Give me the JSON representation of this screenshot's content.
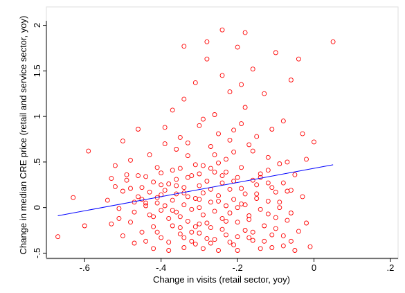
{
  "chart_data": {
    "type": "scatter",
    "title": "",
    "xlabel": "Change in visits (retail sector, yoy)",
    "ylabel": "Change in median CRE price (retail and service sector, yoy)",
    "xlim": [
      -0.7,
      0.22
    ],
    "ylim": [
      -0.55,
      2.05
    ],
    "x_ticks": [
      -0.6,
      -0.4,
      -0.2,
      0,
      0.2
    ],
    "x_tick_labels": [
      "-.6",
      "-.4",
      "-.2",
      "0",
      ".2"
    ],
    "y_ticks": [
      -0.5,
      0,
      0.5,
      1,
      1.5,
      2
    ],
    "y_tick_labels": [
      "-.5",
      "0",
      ".5",
      "1",
      "1.5",
      "2"
    ],
    "grid": false,
    "legend": "none",
    "colors": {
      "points": "#ff0000",
      "fit_line": "#0000ff",
      "plot_border": "#dddddd"
    },
    "series": [
      {
        "type": "scatter",
        "points": [
          [
            -0.67,
            -0.32
          ],
          [
            -0.63,
            0.11
          ],
          [
            -0.6,
            -0.2
          ],
          [
            -0.59,
            0.62
          ],
          [
            -0.54,
            0.08
          ],
          [
            -0.53,
            0.32
          ],
          [
            -0.52,
            0.46
          ],
          [
            -0.52,
            0.23
          ],
          [
            -0.51,
            -0.12
          ],
          [
            -0.51,
            -0.01
          ],
          [
            -0.5,
            0.73
          ],
          [
            -0.5,
            0.18
          ],
          [
            -0.49,
            0.3
          ],
          [
            -0.49,
            0.36
          ],
          [
            -0.48,
            0.21
          ],
          [
            -0.48,
            -0.16
          ],
          [
            -0.48,
            0.52
          ],
          [
            -0.47,
            0.06
          ],
          [
            -0.47,
            -0.39
          ],
          [
            -0.46,
            0.12
          ],
          [
            -0.46,
            0.86
          ],
          [
            -0.45,
            0.22
          ],
          [
            -0.45,
            0.09
          ],
          [
            -0.45,
            -0.27
          ],
          [
            -0.44,
            0.34
          ],
          [
            -0.44,
            0.02
          ],
          [
            -0.43,
            -0.08
          ],
          [
            -0.43,
            0.17
          ],
          [
            -0.42,
            -0.45
          ],
          [
            -0.42,
            0.28
          ],
          [
            -0.42,
            -0.21
          ],
          [
            -0.41,
            0.11
          ],
          [
            -0.41,
            0.05
          ],
          [
            -0.4,
            0.38
          ],
          [
            -0.4,
            -0.03
          ],
          [
            -0.4,
            -0.33
          ],
          [
            -0.39,
            0.19
          ],
          [
            -0.39,
            0.02
          ],
          [
            -0.39,
            0.7
          ],
          [
            -0.38,
            -0.12
          ],
          [
            -0.38,
            0.26
          ],
          [
            -0.38,
            -0.38
          ],
          [
            -0.37,
            1.07
          ],
          [
            -0.37,
            0.08
          ],
          [
            -0.37,
            -0.2
          ],
          [
            -0.36,
            0.31
          ],
          [
            -0.36,
            0.15
          ],
          [
            -0.36,
            -0.05
          ],
          [
            -0.35,
            0.77
          ],
          [
            -0.35,
            -0.29
          ],
          [
            -0.35,
            0.43
          ],
          [
            -0.34,
            0.03
          ],
          [
            -0.34,
            1.19
          ],
          [
            -0.34,
            -0.44
          ],
          [
            -0.34,
            0.22
          ],
          [
            -0.33,
            -0.15
          ],
          [
            -0.33,
            0.12
          ],
          [
            -0.33,
            0.57
          ],
          [
            -0.32,
            -0.02
          ],
          [
            -0.32,
            0.35
          ],
          [
            -0.32,
            -0.27
          ],
          [
            -0.31,
            1.37
          ],
          [
            -0.31,
            0.1
          ],
          [
            -0.31,
            -0.4
          ],
          [
            -0.3,
            0.24
          ],
          [
            -0.3,
            0.0
          ],
          [
            -0.3,
            0.9
          ],
          [
            -0.3,
            -0.18
          ],
          [
            -0.29,
            0.46
          ],
          [
            -0.29,
            -0.08
          ],
          [
            -0.29,
            0.16
          ],
          [
            -0.28,
            1.63
          ],
          [
            -0.28,
            -0.34
          ],
          [
            -0.28,
            0.29
          ],
          [
            -0.27,
            0.06
          ],
          [
            -0.27,
            0.67
          ],
          [
            -0.27,
            -0.22
          ],
          [
            -0.26,
            1.02
          ],
          [
            -0.26,
            0.39
          ],
          [
            -0.26,
            -0.04
          ],
          [
            -0.25,
            0.13
          ],
          [
            -0.25,
            -0.47
          ],
          [
            -0.25,
            0.81
          ],
          [
            -0.24,
            0.27
          ],
          [
            -0.24,
            -0.12
          ],
          [
            -0.24,
            1.45
          ],
          [
            -0.23,
            0.02
          ],
          [
            -0.23,
            0.53
          ],
          [
            -0.23,
            -0.3
          ],
          [
            -0.22,
            0.2
          ],
          [
            -0.22,
            1.27
          ],
          [
            -0.22,
            -0.06
          ],
          [
            -0.21,
            0.61
          ],
          [
            -0.21,
            0.09
          ],
          [
            -0.21,
            -0.41
          ],
          [
            -0.2,
            0.33
          ],
          [
            -0.2,
            1.76
          ],
          [
            -0.2,
            -0.16
          ],
          [
            -0.19,
            0.92
          ],
          [
            -0.19,
            0.04
          ],
          [
            -0.19,
            0.44
          ],
          [
            -0.18,
            -0.25
          ],
          [
            -0.18,
            1.1
          ],
          [
            -0.18,
            0.15
          ],
          [
            -0.17,
            0.69
          ],
          [
            -0.17,
            -0.09
          ],
          [
            -0.16,
            0.3
          ],
          [
            -0.16,
            1.52
          ],
          [
            -0.16,
            -0.36
          ],
          [
            -0.15,
            0.1
          ],
          [
            -0.15,
            0.78
          ],
          [
            -0.14,
            -0.02
          ],
          [
            -0.14,
            0.37
          ],
          [
            -0.13,
            1.25
          ],
          [
            -0.13,
            -0.2
          ],
          [
            -0.12,
            0.07
          ],
          [
            -0.12,
            0.55
          ],
          [
            -0.11,
            -0.44
          ],
          [
            -0.11,
            0.22
          ],
          [
            -0.1,
            1.7
          ],
          [
            -0.1,
            -0.11
          ],
          [
            -0.09,
            0.48
          ],
          [
            -0.09,
            0.0
          ],
          [
            -0.08,
            0.95
          ],
          [
            -0.08,
            -0.31
          ],
          [
            -0.07,
            0.18
          ],
          [
            -0.06,
            1.4
          ],
          [
            -0.06,
            -0.06
          ],
          [
            -0.05,
            0.36
          ],
          [
            -0.04,
            1.63
          ],
          [
            -0.04,
            -0.26
          ],
          [
            -0.03,
            0.12
          ],
          [
            -0.02,
            0.53
          ],
          [
            -0.01,
            -0.43
          ],
          [
            0.0,
            0.72
          ],
          [
            -0.28,
            1.82
          ],
          [
            -0.34,
            1.77
          ],
          [
            -0.24,
            1.95
          ],
          [
            -0.18,
            1.92
          ],
          [
            0.05,
            1.82
          ],
          [
            -0.26,
            0.58
          ],
          [
            -0.31,
            0.47
          ],
          [
            -0.36,
            0.64
          ],
          [
            -0.41,
            0.44
          ],
          [
            -0.21,
            0.85
          ],
          [
            -0.16,
            0.62
          ],
          [
            -0.12,
            0.41
          ],
          [
            -0.46,
            0.35
          ],
          [
            -0.43,
            0.58
          ],
          [
            -0.39,
            0.88
          ],
          [
            -0.33,
            0.71
          ],
          [
            -0.29,
            0.97
          ],
          [
            -0.25,
            0.49
          ],
          [
            -0.22,
            0.74
          ],
          [
            -0.19,
            1.35
          ],
          [
            -0.15,
            0.25
          ],
          [
            -0.11,
            0.86
          ],
          [
            -0.07,
            0.5
          ],
          [
            -0.03,
            0.81
          ],
          [
            -0.08,
            0.27
          ],
          [
            -0.53,
            -0.18
          ],
          [
            -0.5,
            -0.31
          ],
          [
            -0.47,
            -0.05
          ],
          [
            -0.44,
            -0.37
          ],
          [
            -0.41,
            -0.27
          ],
          [
            -0.38,
            -0.47
          ],
          [
            -0.35,
            -0.1
          ],
          [
            -0.32,
            -0.37
          ],
          [
            -0.29,
            -0.45
          ],
          [
            -0.26,
            -0.35
          ],
          [
            -0.23,
            -0.15
          ],
          [
            -0.2,
            -0.47
          ],
          [
            -0.17,
            -0.33
          ],
          [
            -0.14,
            -0.45
          ],
          [
            -0.11,
            -0.3
          ],
          [
            -0.08,
            -0.42
          ],
          [
            -0.05,
            -0.47
          ],
          [
            -0.02,
            -0.17
          ],
          [
            -0.44,
            0.05
          ],
          [
            -0.4,
            0.14
          ],
          [
            -0.36,
            0.24
          ],
          [
            -0.33,
            0.33
          ],
          [
            -0.3,
            0.09
          ],
          [
            -0.27,
            0.2
          ],
          [
            -0.24,
            0.35
          ],
          [
            -0.21,
            0.29
          ],
          [
            -0.18,
            0.03
          ],
          [
            -0.15,
            0.15
          ],
          [
            -0.12,
            0.27
          ],
          [
            -0.09,
            0.06
          ],
          [
            -0.06,
            0.19
          ],
          [
            -0.34,
            -0.33
          ],
          [
            -0.31,
            -0.21
          ],
          [
            -0.27,
            -0.39
          ],
          [
            -0.24,
            -0.24
          ],
          [
            -0.2,
            -0.32
          ],
          [
            -0.17,
            -0.13
          ],
          [
            -0.13,
            -0.37
          ],
          [
            -0.1,
            -0.23
          ],
          [
            -0.07,
            -0.14
          ],
          [
            -0.37,
            0.41
          ],
          [
            -0.34,
            0.16
          ],
          [
            -0.3,
            0.37
          ],
          [
            -0.27,
            0.43
          ],
          [
            -0.23,
            0.39
          ],
          [
            -0.19,
            0.21
          ],
          [
            -0.14,
            0.33
          ],
          [
            -0.1,
            0.17
          ],
          [
            -0.35,
            -0.22
          ],
          [
            -0.28,
            -0.17
          ],
          [
            -0.22,
            -0.38
          ],
          [
            -0.16,
            -0.27
          ],
          [
            -0.12,
            -0.07
          ],
          [
            -0.06,
            -0.37
          ],
          [
            -0.42,
            -0.1
          ],
          [
            -0.4,
            0.25
          ],
          [
            -0.37,
            -0.03
          ],
          [
            -0.3,
            -0.28
          ],
          [
            -0.25,
            0.07
          ],
          [
            -0.2,
            0.0
          ]
        ]
      },
      {
        "type": "line",
        "name": "",
        "x": [
          -0.67,
          0.05
        ],
        "y": [
          -0.09,
          0.47
        ]
      }
    ]
  }
}
